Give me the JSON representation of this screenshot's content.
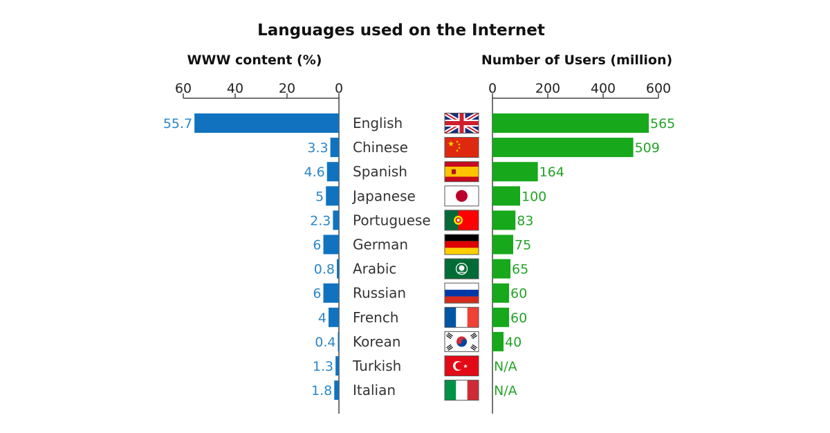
{
  "colors": {
    "left_bar": "#1173c0",
    "right_bar": "#17a81c",
    "left_label": "#2a86c9",
    "right_label": "#23a327"
  },
  "chart_data": {
    "type": "bar",
    "title": "Languages used on the Internet",
    "categories": [
      "English",
      "Chinese",
      "Spanish",
      "Japanese",
      "Portuguese",
      "German",
      "Arabic",
      "Russian",
      "French",
      "Korean",
      "Turkish",
      "Italian"
    ],
    "flag_icons": [
      "uk-flag-icon",
      "china-flag-icon",
      "spain-flag-icon",
      "japan-flag-icon",
      "portugal-flag-icon",
      "germany-flag-icon",
      "arab-league-flag-icon",
      "russia-flag-icon",
      "france-flag-icon",
      "south-korea-flag-icon",
      "turkey-flag-icon",
      "italy-flag-icon"
    ],
    "series": [
      {
        "name": "WWW content (%)",
        "values": [
          55.7,
          3.3,
          4.6,
          5,
          2.3,
          6,
          0.8,
          6,
          4,
          0.4,
          1.3,
          1.8
        ],
        "labels": [
          "55.7",
          "3.3",
          "4.6",
          "5",
          "2.3",
          "6",
          "0.8",
          "6",
          "4",
          "0.4",
          "1.3",
          "1.8"
        ],
        "xlim": [
          60,
          0
        ],
        "ticks": [
          "60",
          "40",
          "20",
          "0"
        ],
        "tick_values": [
          60,
          40,
          20,
          0
        ]
      },
      {
        "name": "Number of Users (million)",
        "values": [
          565,
          509,
          164,
          100,
          83,
          75,
          65,
          60,
          60,
          40,
          null,
          null
        ],
        "labels": [
          "565",
          "509",
          "164",
          "100",
          "83",
          "75",
          "65",
          "60",
          "60",
          "40",
          "N/A",
          "N/A"
        ],
        "xlim": [
          0,
          600
        ],
        "ticks": [
          "0",
          "200",
          "400",
          "600"
        ],
        "tick_values": [
          0,
          200,
          400,
          600
        ]
      }
    ],
    "grid": false
  }
}
